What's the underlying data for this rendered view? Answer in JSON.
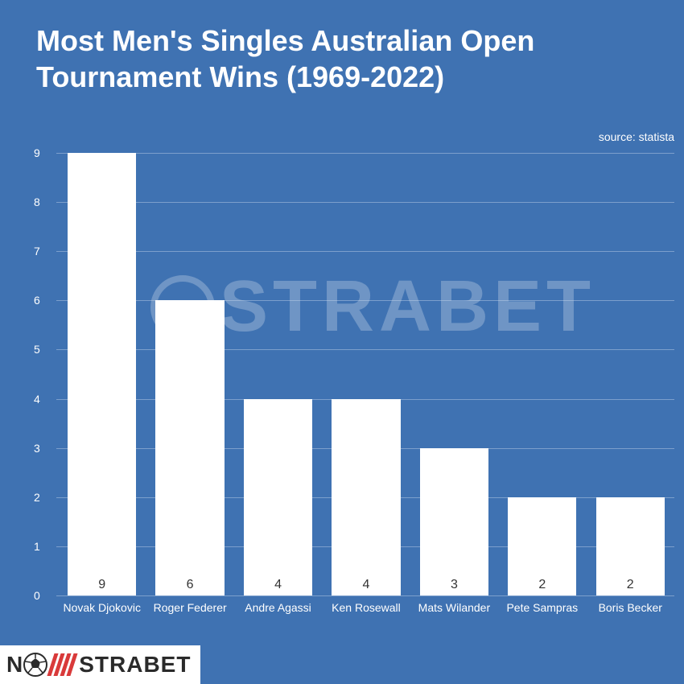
{
  "chart": {
    "type": "bar",
    "title": "Most Men's Singles Australian Open Tournament Wins (1969-2022)",
    "source_label": "source: statista",
    "background_color": "#3f72b2",
    "title_color": "#ffffff",
    "title_fontsize": 36,
    "grid_color": "rgba(200, 215, 235, 0.45)",
    "axis_label_color": "#ffffff",
    "axis_label_fontsize": 14,
    "bar_color": "#ffffff",
    "bar_value_color": "#333333",
    "bar_value_fontsize": 16,
    "bar_width_ratio": 0.78,
    "ylim": [
      0,
      9
    ],
    "ytick_step": 1,
    "yticks": [
      0,
      1,
      2,
      3,
      4,
      5,
      6,
      7,
      8,
      9
    ],
    "categories": [
      "Novak Djokovic",
      "Roger Federer",
      "Andre Agassi",
      "Ken Rosewall",
      "Mats Wilander",
      "Pete Sampras",
      "Boris Becker"
    ],
    "values": [
      9,
      6,
      4,
      4,
      3,
      2,
      2
    ]
  },
  "watermark": {
    "text_before": "N",
    "text_after": "STRABET",
    "color": "rgba(255,255,255,0.25)",
    "fontsize": 90
  },
  "logo": {
    "text_before": "N",
    "text_after": "STRABET",
    "text_color": "#2a2a2a",
    "background_color": "#ffffff",
    "stripe_color": "#d93a3a",
    "ball_outer": "#2a2a2a",
    "ball_inner": "#ffffff"
  }
}
